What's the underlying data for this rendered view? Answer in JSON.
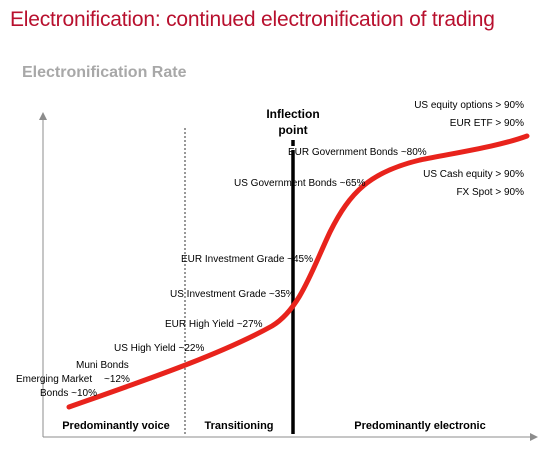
{
  "header": {
    "title": "Electronification: continued electronification of trading",
    "subtitle": "Electronification Rate"
  },
  "colors": {
    "title": "#b8102e",
    "curve": "#e8231c",
    "subtitle": "#a8a8a8"
  },
  "inflection": {
    "line1": "Inflection",
    "line2": "point"
  },
  "zones": {
    "voice": "Predominantly voice",
    "transitioning": "Transitioning",
    "electronic": "Predominantly electronic"
  },
  "labels": {
    "us_equity_options": "US equity options > 90%",
    "eur_etf": "EUR ETF > 90%",
    "eur_gov_bonds": "EUR Government Bonds ~80%",
    "us_gov_bonds": "US Government Bonds ~65%",
    "us_cash_equity": "US Cash equity > 90%",
    "fx_spot": "FX Spot > 90%",
    "eur_inv_grade": "EUR Investment Grade ~45%",
    "us_inv_grade": "US Investment Grade ~35%",
    "eur_high_yield": "EUR High Yield ~27%",
    "us_high_yield": "US High Yield ~22%",
    "muni_bonds_line1": "Muni Bonds",
    "muni_bonds_line2": "~12%",
    "em_bonds_line1": "Emerging Market",
    "em_bonds_line2": "Bonds ~10%"
  }
}
